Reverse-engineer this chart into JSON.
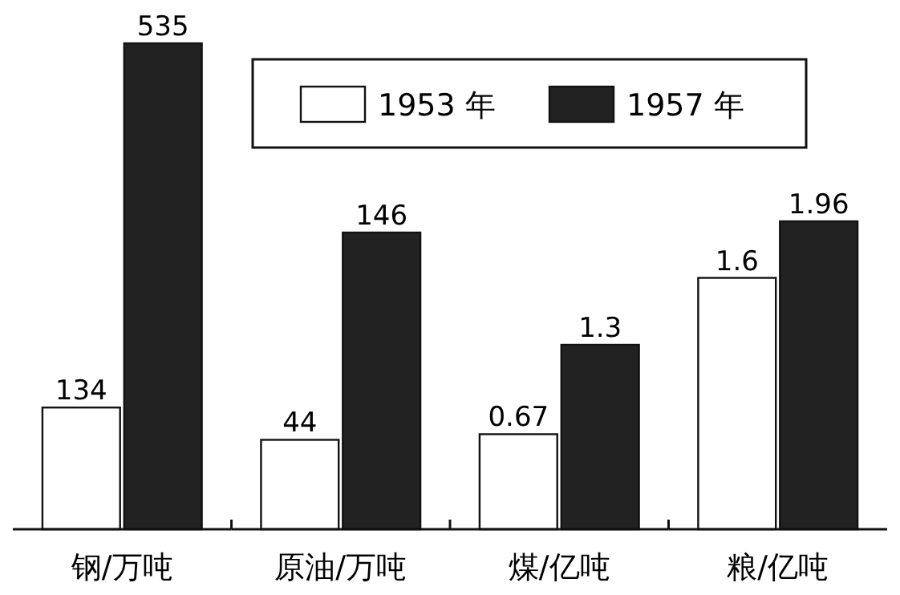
{
  "chart_data": [
    {
      "type": "bar",
      "categories": [
        "钢/万吨"
      ],
      "tick_labels": "x",
      "data_labels": true,
      "series": [
        {
          "color": "#ffffff",
          "values": [
            134
          ]
        },
        {
          "color": "#222222",
          "values": [
            535
          ]
        }
      ]
    },
    {
      "type": "bar",
      "categories": [
        "原油/万吨"
      ],
      "tick_labels": "x",
      "data_labels": true,
      "legend": "top",
      "series": [
        {
          "name": "1953 年",
          "color": "#ffffff",
          "values": [
            44
          ]
        },
        {
          "name": "1957 年",
          "color": "#222222",
          "values": [
            146
          ]
        }
      ]
    },
    {
      "type": "bar",
      "categories": [
        "煤/亿吨"
      ],
      "tick_labels": "x",
      "data_labels": true,
      "series": [
        {
          "color": "#ffffff",
          "values": [
            0.67
          ]
        },
        {
          "color": "#222222",
          "values": [
            1.3
          ]
        }
      ]
    },
    {
      "type": "bar",
      "categories": [
        "粮/亿吨"
      ],
      "tick_labels": "x",
      "data_labels": true,
      "series": [
        {
          "color": "#ffffff",
          "values": [
            1.6
          ]
        },
        {
          "color": "#222222",
          "values": [
            1.96
          ]
        }
      ]
    }
  ]
}
